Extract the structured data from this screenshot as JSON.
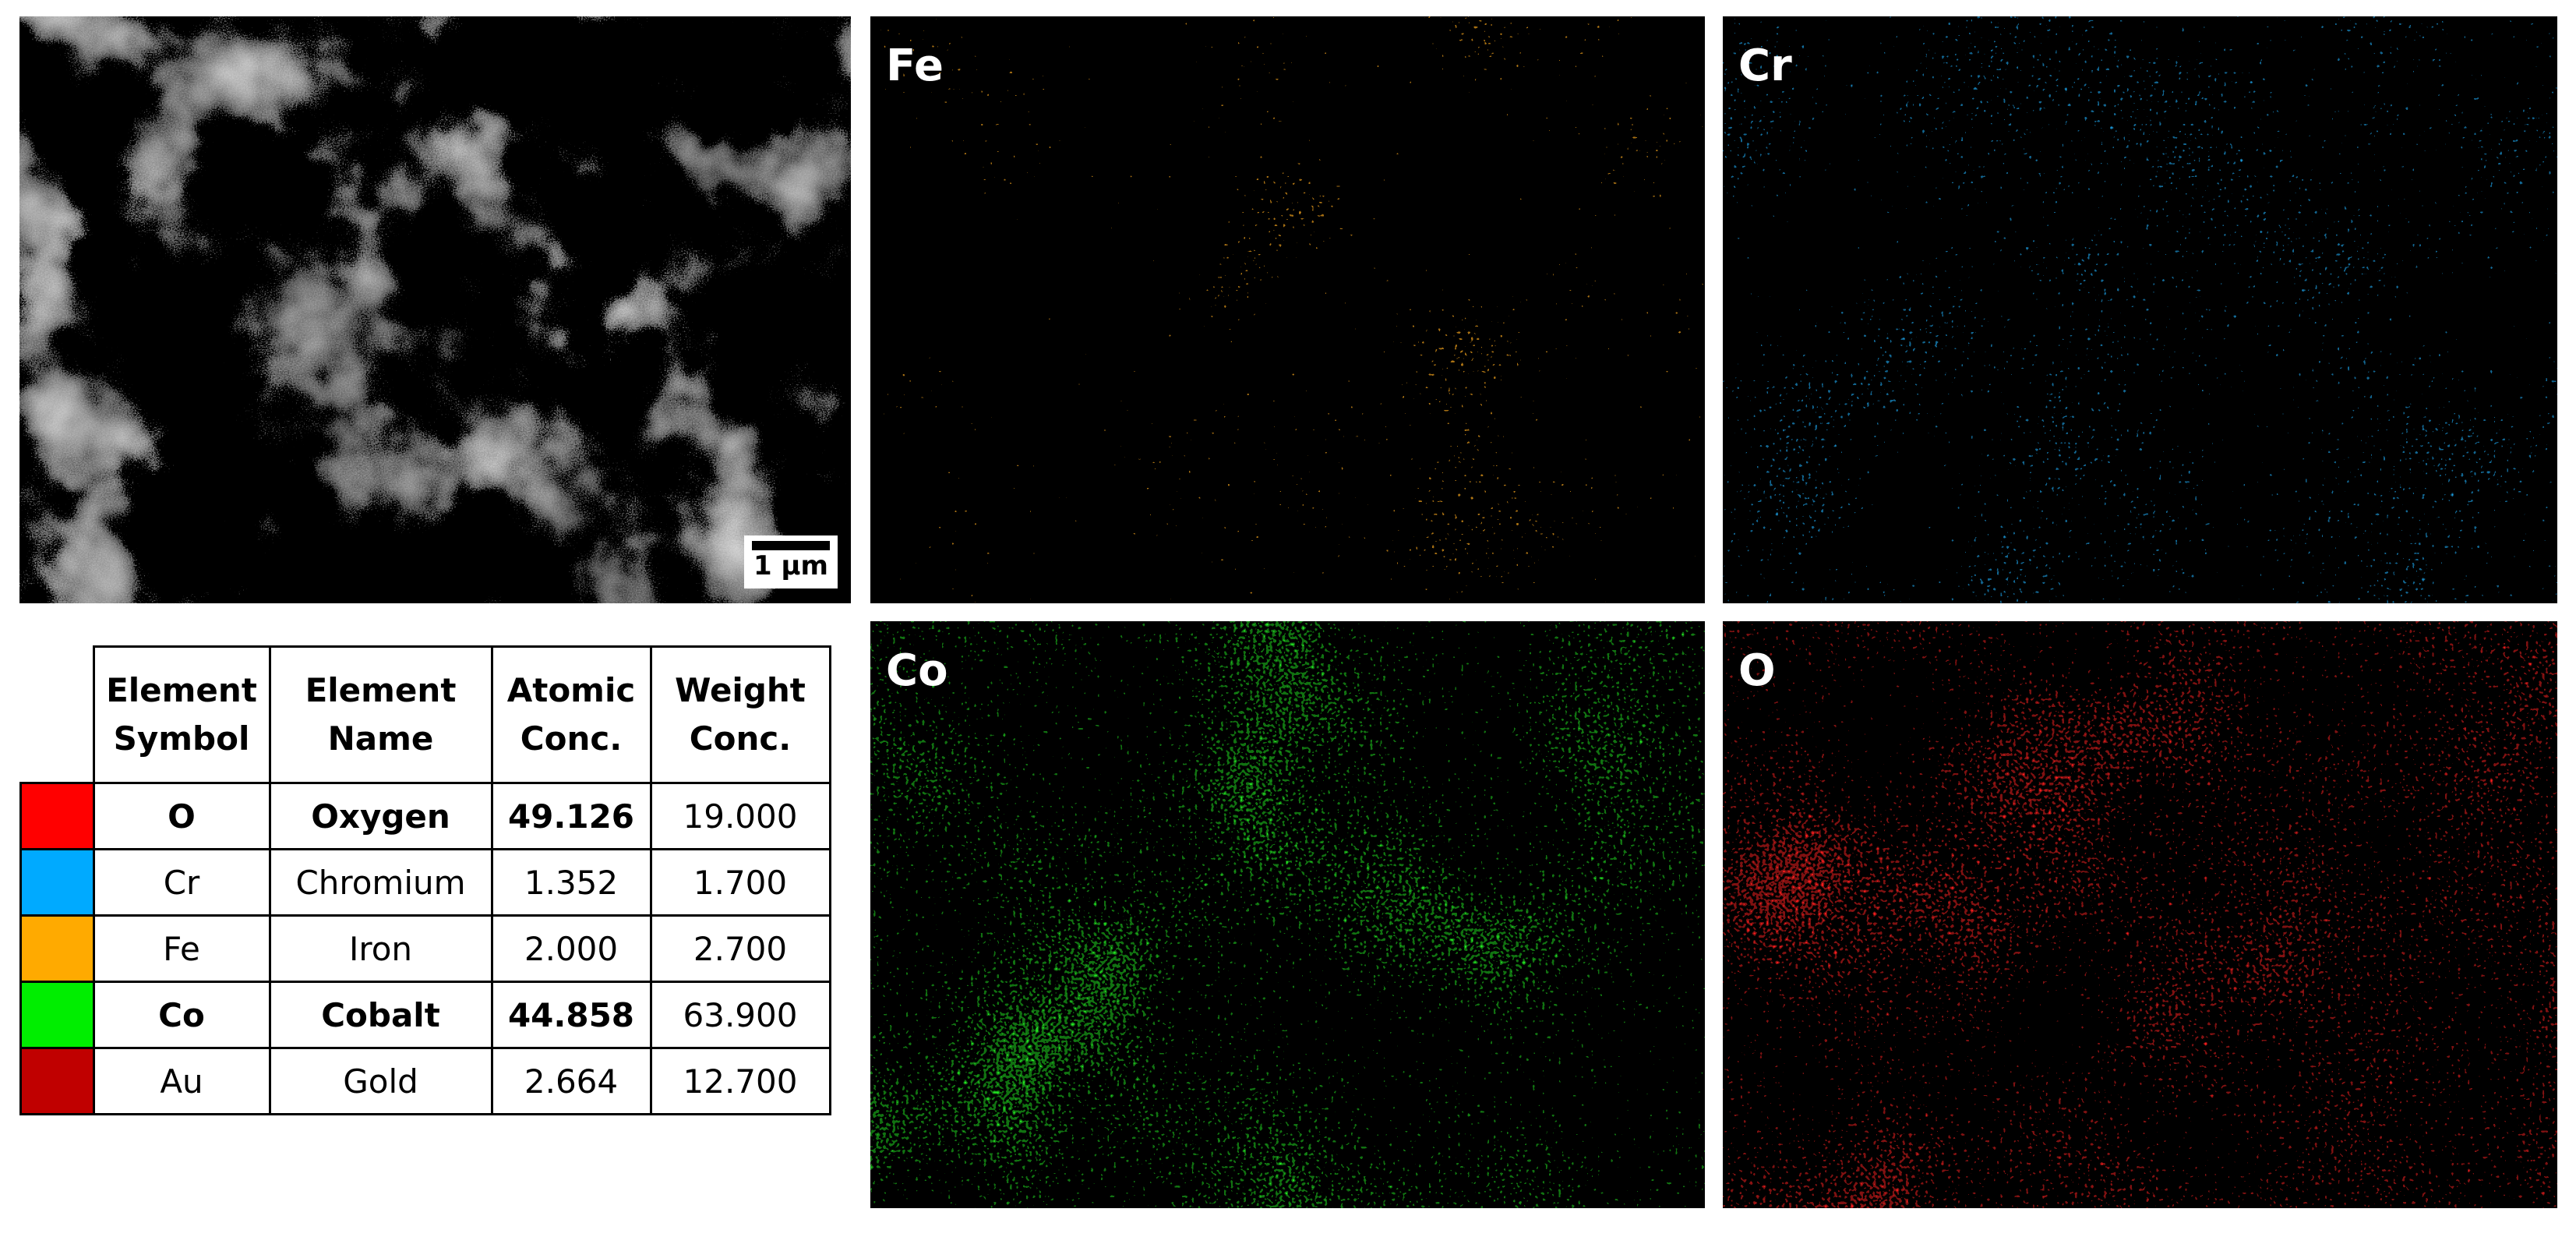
{
  "sem_image": {
    "scale_bar": "1 µm"
  },
  "maps": [
    {
      "label": "Fe",
      "color": "#f0a01e"
    },
    {
      "label": "Cr",
      "color": "#1ea8f0"
    },
    {
      "label": "Co",
      "color": "#22e622"
    },
    {
      "label": "O",
      "color": "#ff1e1e"
    }
  ],
  "table": {
    "headers": [
      "Element Symbol",
      "Element Name",
      "Atomic Conc.",
      "Weight Conc."
    ],
    "rows": [
      {
        "color": "#ff0000",
        "bold": true,
        "cells": [
          "O",
          "Oxygen",
          "49.126",
          "19.000"
        ]
      },
      {
        "color": "#00aaff",
        "bold": false,
        "cells": [
          "Cr",
          "Chromium",
          "1.352",
          "1.700"
        ]
      },
      {
        "color": "#ffaa00",
        "bold": false,
        "cells": [
          "Fe",
          "Iron",
          "2.000",
          "2.700"
        ]
      },
      {
        "color": "#00ee00",
        "bold": true,
        "cells": [
          "Co",
          "Cobalt",
          "44.858",
          "63.900"
        ]
      },
      {
        "color": "#c00000",
        "bold": false,
        "cells": [
          "Au",
          "Gold",
          "2.664",
          "12.700"
        ]
      }
    ]
  }
}
